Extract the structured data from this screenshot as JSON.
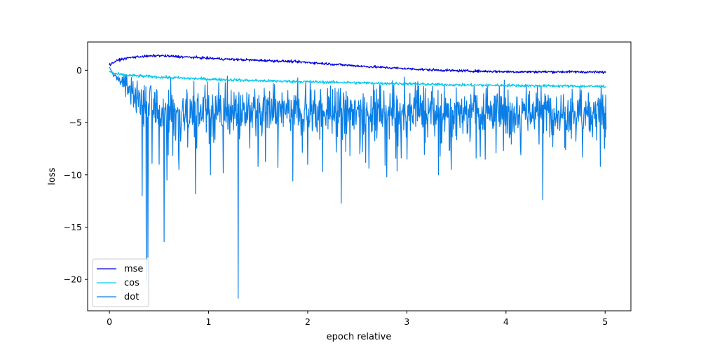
{
  "chart_data": {
    "type": "line",
    "xlabel": "epoch relative",
    "ylabel": "loss",
    "xlim": [
      -0.22,
      5.26
    ],
    "ylim": [
      -23.0,
      2.7
    ],
    "xticks": [
      0,
      1,
      2,
      3,
      4,
      5
    ],
    "yticks": [
      0,
      -5,
      -10,
      -15,
      -20
    ],
    "xtick_labels": [
      "0",
      "1",
      "2",
      "3",
      "4",
      "5"
    ],
    "ytick_labels": [
      "0",
      "−5",
      "−10",
      "−15",
      "−20"
    ],
    "grid": false,
    "legend": {
      "position": "lower-left"
    },
    "x_start": 0,
    "x_end": 5.01,
    "series": [
      {
        "name": "mse",
        "color": "#0000dd",
        "x": [
          0,
          0.05,
          0.1,
          0.2,
          0.3,
          0.4,
          0.5,
          0.6,
          0.8,
          1.0,
          1.2,
          1.5,
          1.8,
          2.0,
          2.3,
          2.6,
          2.9,
          3.2,
          3.5,
          3.8,
          4.1,
          4.4,
          4.7,
          5.01
        ],
        "y": [
          0.5,
          0.8,
          1.0,
          1.2,
          1.3,
          1.35,
          1.4,
          1.35,
          1.25,
          1.15,
          1.05,
          0.95,
          0.85,
          0.75,
          0.55,
          0.35,
          0.2,
          0.05,
          -0.05,
          -0.1,
          -0.15,
          -0.15,
          -0.15,
          -0.2
        ]
      },
      {
        "name": "cos",
        "color": "#00c8f0",
        "x": [
          0,
          0.05,
          0.1,
          0.2,
          0.4,
          0.6,
          1.0,
          1.5,
          2.0,
          2.5,
          3.0,
          3.5,
          4.0,
          4.5,
          5.01
        ],
        "y": [
          -0.1,
          -0.3,
          -0.4,
          -0.5,
          -0.6,
          -0.7,
          -0.85,
          -1.0,
          -1.1,
          -1.2,
          -1.3,
          -1.4,
          -1.45,
          -1.5,
          -1.55
        ]
      },
      {
        "name": "dot",
        "color": "#0a7ee6",
        "x": [
          0,
          0.03,
          0.06,
          0.1,
          0.14,
          0.18,
          0.22,
          0.26,
          0.3,
          0.35,
          0.4,
          0.5,
          0.6,
          0.8,
          1.0,
          1.3,
          1.6,
          2.0,
          2.5,
          3.0,
          3.5,
          4.0,
          4.5,
          5.01
        ],
        "y": [
          0.3,
          -0.3,
          -0.6,
          -0.9,
          -1.2,
          -1.6,
          -2.0,
          -2.4,
          -2.8,
          -3.1,
          -3.4,
          -3.8,
          -4.0,
          -4.1,
          -4.1,
          -4.0,
          -4.0,
          -4.0,
          -4.0,
          -3.9,
          -3.9,
          -3.9,
          -3.9,
          -3.9
        ],
        "noise_amplitude": 1.5,
        "spikes": [
          {
            "x": 0.33,
            "y": -12.0
          },
          {
            "x": 0.37,
            "y": -20.1
          },
          {
            "x": 0.39,
            "y": -17.9
          },
          {
            "x": 0.43,
            "y": -8.9
          },
          {
            "x": 0.5,
            "y": -9.0
          },
          {
            "x": 0.55,
            "y": -16.4
          },
          {
            "x": 0.58,
            "y": -10.5
          },
          {
            "x": 0.7,
            "y": -9.5
          },
          {
            "x": 0.87,
            "y": -11.8
          },
          {
            "x": 1.02,
            "y": -10.0
          },
          {
            "x": 1.15,
            "y": -9.8
          },
          {
            "x": 1.3,
            "y": -21.8
          },
          {
            "x": 1.5,
            "y": -9.2
          },
          {
            "x": 1.7,
            "y": -9.3
          },
          {
            "x": 1.85,
            "y": -10.6
          },
          {
            "x": 2.0,
            "y": -9.0
          },
          {
            "x": 2.15,
            "y": -9.7
          },
          {
            "x": 2.34,
            "y": -12.7
          },
          {
            "x": 2.55,
            "y": -7.8
          },
          {
            "x": 2.78,
            "y": -9.1
          },
          {
            "x": 3.0,
            "y": -8.5
          },
          {
            "x": 3.32,
            "y": -10.0
          },
          {
            "x": 3.45,
            "y": -9.5
          },
          {
            "x": 3.7,
            "y": -8.4
          },
          {
            "x": 3.9,
            "y": -7.9
          },
          {
            "x": 4.15,
            "y": -8.1
          },
          {
            "x": 4.37,
            "y": -12.4
          },
          {
            "x": 4.6,
            "y": -7.6
          },
          {
            "x": 4.77,
            "y": -8.3
          },
          {
            "x": 4.95,
            "y": -9.2
          },
          {
            "x": 5.0,
            "y": -6.4
          }
        ]
      }
    ]
  }
}
